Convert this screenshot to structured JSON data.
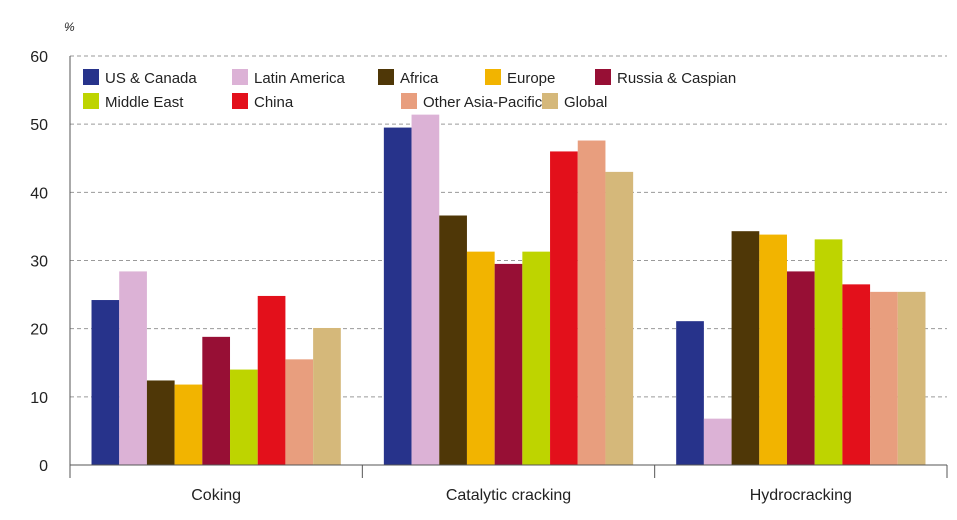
{
  "chart_data": {
    "type": "bar",
    "ylabel": "%",
    "ylim": [
      0,
      60
    ],
    "yticks": [
      0,
      10,
      20,
      30,
      40,
      50,
      60
    ],
    "ytick_labels": [
      "0",
      "10",
      "20",
      "30",
      "40",
      "50",
      "60"
    ],
    "grid": "horizontal dashed",
    "legend_position": "top-left",
    "categories": [
      "Coking",
      "Catalytic cracking",
      "Hydrocracking"
    ],
    "series": [
      {
        "name": "US & Canada",
        "color": "#27338b",
        "values": [
          24.2,
          49.5,
          21.1
        ]
      },
      {
        "name": "Latin America",
        "color": "#dcb2d6",
        "values": [
          28.4,
          51.4,
          6.8
        ]
      },
      {
        "name": "Africa",
        "color": "#4f3707",
        "values": [
          12.4,
          36.6,
          34.3
        ]
      },
      {
        "name": "Europe",
        "color": "#f2b400",
        "values": [
          11.8,
          31.3,
          33.8
        ]
      },
      {
        "name": "Russia & Caspian",
        "color": "#970f35",
        "values": [
          18.8,
          29.5,
          28.4
        ]
      },
      {
        "name": "Middle East",
        "color": "#bed400",
        "values": [
          14.0,
          31.3,
          33.1
        ]
      },
      {
        "name": "China",
        "color": "#e3101b",
        "values": [
          24.8,
          46.0,
          26.5
        ]
      },
      {
        "name": "Other Asia-Pacific",
        "color": "#e89e7e",
        "values": [
          15.5,
          47.6,
          25.4
        ]
      },
      {
        "name": "Global",
        "color": "#d5b87a",
        "values": [
          20.1,
          43.0,
          25.4
        ]
      }
    ]
  },
  "legend_rows": [
    [
      "US & Canada",
      "Latin America",
      "Africa",
      "Europe",
      "Russia & Caspian"
    ],
    [
      "Middle East",
      "China",
      "Other Asia-Pacific",
      "Global"
    ]
  ]
}
